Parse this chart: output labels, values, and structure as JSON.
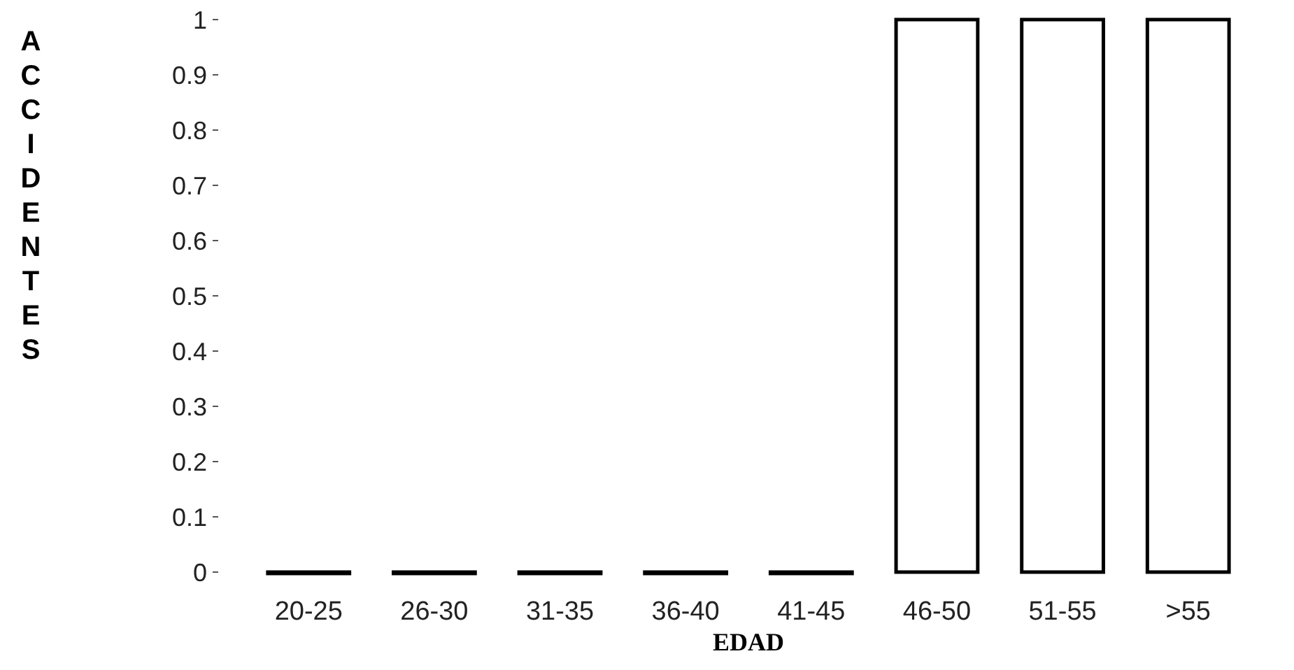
{
  "chart_data": {
    "type": "bar",
    "xlabel": "EDAD",
    "ylabel": "ACCIDENTES",
    "categories": [
      "20-25",
      "26-30",
      "31-35",
      "36-40",
      "41-45",
      "46-50",
      "51-55",
      ">55"
    ],
    "values": [
      0,
      0,
      0,
      0,
      0,
      1,
      1,
      1
    ],
    "color": "#ffffff",
    "ylim": [
      0,
      1
    ],
    "yticks": [
      0,
      0.1,
      0.2,
      0.3,
      0.4,
      0.5,
      0.6,
      0.7,
      0.8,
      0.9,
      1
    ]
  }
}
